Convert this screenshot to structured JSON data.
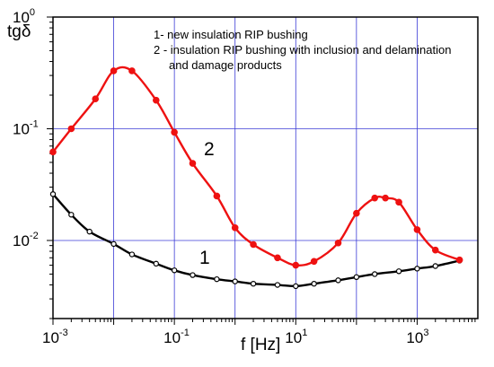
{
  "chart_data": {
    "type": "line",
    "xlabel": "f [Hz]",
    "ylabel": "tgδ",
    "x_scale": "log",
    "y_scale": "log",
    "xlim": [
      0.001,
      10000
    ],
    "ylim": [
      0.002,
      1
    ],
    "grid": true,
    "x_ticks": [
      {
        "base": "10",
        "exp": "-3",
        "value": 0.001
      },
      {
        "base": "10",
        "exp": "-1",
        "value": 0.1
      },
      {
        "base": "10",
        "exp": "1",
        "value": 10
      },
      {
        "base": "10",
        "exp": "3",
        "value": 1000
      }
    ],
    "y_ticks": [
      {
        "base": "10",
        "exp": "0",
        "value": 1
      },
      {
        "base": "10",
        "exp": "-1",
        "value": 0.1
      },
      {
        "base": "10",
        "exp": "-2",
        "value": 0.01
      }
    ],
    "legend": {
      "position": "top",
      "entries": [
        "1- new insulation RIP bushing",
        "2 - insulation RIP bushing with inclusion and delamination",
        "and damage products"
      ]
    },
    "series": [
      {
        "label": "1",
        "color": "#000000",
        "marker": "hollow-circle",
        "x": [
          0.001,
          0.002,
          0.004,
          0.01,
          0.02,
          0.05,
          0.1,
          0.2,
          0.5,
          1,
          2,
          5,
          10,
          20,
          50,
          100,
          200,
          500,
          1000,
          2000,
          5000
        ],
        "y": [
          0.026,
          0.017,
          0.012,
          0.0093,
          0.0075,
          0.0062,
          0.0054,
          0.0049,
          0.0045,
          0.0043,
          0.0041,
          0.004,
          0.0039,
          0.0041,
          0.0044,
          0.0047,
          0.005,
          0.0053,
          0.0056,
          0.0059,
          0.0066
        ]
      },
      {
        "label": "2",
        "color": "#ee1111",
        "marker": "filled-circle",
        "x": [
          0.001,
          0.002,
          0.005,
          0.01,
          0.02,
          0.05,
          0.1,
          0.2,
          0.5,
          1,
          2,
          5,
          10,
          20,
          50,
          100,
          200,
          300,
          500,
          1000,
          2000,
          5000
        ],
        "y": [
          0.062,
          0.1,
          0.185,
          0.33,
          0.33,
          0.18,
          0.093,
          0.049,
          0.025,
          0.013,
          0.0092,
          0.007,
          0.006,
          0.0065,
          0.0095,
          0.0175,
          0.024,
          0.024,
          0.022,
          0.0125,
          0.0082,
          0.0067
        ]
      }
    ]
  }
}
